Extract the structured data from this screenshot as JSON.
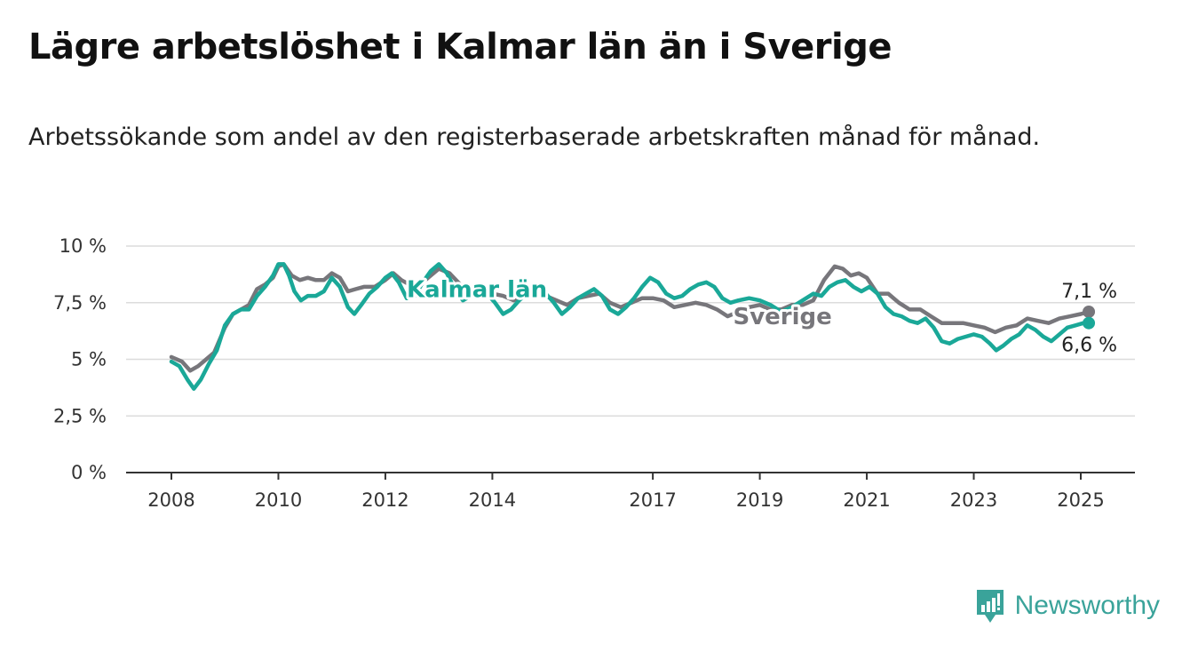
{
  "title": "Lägre arbetslöshet i Kalmar län än i Sverige",
  "subtitle": "Arbetssökande som andel av den registerbaserade arbetskraften månad för månad.",
  "brand": {
    "name": "Newsworthy",
    "icon": "newsworthy-logo-icon",
    "color": "#3aa39a"
  },
  "colors": {
    "kalmar": "#1aa898",
    "sverige": "#77767b",
    "grid": "#dcdcdc",
    "axis": "#333333"
  },
  "chart_data": {
    "type": "line",
    "title": "Lägre arbetslöshet i Kalmar län än i Sverige",
    "xlabel": "",
    "ylabel": "",
    "xlim": [
      2007.2,
      2026.0
    ],
    "ylim": [
      0,
      10
    ],
    "y_ticks": [
      0,
      2.5,
      5,
      7.5,
      10
    ],
    "y_tick_labels": [
      "0 %",
      "2,5 %",
      "5 %",
      "7,5 %",
      "10 %"
    ],
    "x_ticks": [
      2008,
      2010,
      2012,
      2014,
      2017,
      2019,
      2021,
      2023,
      2025
    ],
    "x_tick_labels": [
      "2008",
      "2010",
      "2012",
      "2014",
      "2017",
      "2019",
      "2021",
      "2023",
      "2025"
    ],
    "grid": true,
    "legend": "inline labels",
    "series": [
      {
        "name": "Sverige",
        "color": "#77767b",
        "end_label": "7,1 %",
        "points": [
          [
            2008.0,
            5.1
          ],
          [
            2008.2,
            4.9
          ],
          [
            2008.35,
            4.5
          ],
          [
            2008.5,
            4.7
          ],
          [
            2008.65,
            5.0
          ],
          [
            2008.8,
            5.3
          ],
          [
            2009.0,
            6.4
          ],
          [
            2009.15,
            7.0
          ],
          [
            2009.3,
            7.2
          ],
          [
            2009.45,
            7.4
          ],
          [
            2009.6,
            8.1
          ],
          [
            2009.75,
            8.3
          ],
          [
            2009.9,
            8.6
          ],
          [
            2010.0,
            9.1
          ],
          [
            2010.1,
            9.2
          ],
          [
            2010.25,
            8.7
          ],
          [
            2010.4,
            8.5
          ],
          [
            2010.55,
            8.6
          ],
          [
            2010.7,
            8.5
          ],
          [
            2010.85,
            8.5
          ],
          [
            2011.0,
            8.8
          ],
          [
            2011.15,
            8.6
          ],
          [
            2011.3,
            8.0
          ],
          [
            2011.45,
            8.1
          ],
          [
            2011.6,
            8.2
          ],
          [
            2011.8,
            8.2
          ],
          [
            2012.0,
            8.5
          ],
          [
            2012.15,
            8.8
          ],
          [
            2012.3,
            8.5
          ],
          [
            2012.45,
            8.3
          ],
          [
            2012.6,
            8.2
          ],
          [
            2012.8,
            8.6
          ],
          [
            2013.0,
            9.0
          ],
          [
            2013.2,
            8.8
          ],
          [
            2013.4,
            8.3
          ],
          [
            2013.6,
            8.1
          ],
          [
            2013.8,
            7.9
          ],
          [
            2014.0,
            7.9
          ],
          [
            2014.2,
            7.8
          ],
          [
            2014.4,
            7.6
          ],
          [
            2014.6,
            7.8
          ],
          [
            2014.8,
            7.9
          ],
          [
            2015.0,
            7.8
          ],
          [
            2015.2,
            7.6
          ],
          [
            2015.4,
            7.4
          ],
          [
            2015.6,
            7.7
          ],
          [
            2015.8,
            7.8
          ],
          [
            2016.0,
            7.9
          ],
          [
            2016.2,
            7.5
          ],
          [
            2016.4,
            7.3
          ],
          [
            2016.6,
            7.5
          ],
          [
            2016.8,
            7.7
          ],
          [
            2017.0,
            7.7
          ],
          [
            2017.2,
            7.6
          ],
          [
            2017.4,
            7.3
          ],
          [
            2017.6,
            7.4
          ],
          [
            2017.8,
            7.5
          ],
          [
            2018.0,
            7.4
          ],
          [
            2018.2,
            7.2
          ],
          [
            2018.4,
            6.9
          ],
          [
            2018.6,
            7.1
          ],
          [
            2018.8,
            7.3
          ],
          [
            2019.0,
            7.4
          ],
          [
            2019.2,
            7.2
          ],
          [
            2019.4,
            7.2
          ],
          [
            2019.6,
            7.4
          ],
          [
            2019.8,
            7.4
          ],
          [
            2020.0,
            7.6
          ],
          [
            2020.2,
            8.5
          ],
          [
            2020.4,
            9.1
          ],
          [
            2020.55,
            9.0
          ],
          [
            2020.7,
            8.7
          ],
          [
            2020.85,
            8.8
          ],
          [
            2021.0,
            8.6
          ],
          [
            2021.2,
            7.9
          ],
          [
            2021.4,
            7.9
          ],
          [
            2021.6,
            7.5
          ],
          [
            2021.8,
            7.2
          ],
          [
            2022.0,
            7.2
          ],
          [
            2022.2,
            6.9
          ],
          [
            2022.4,
            6.6
          ],
          [
            2022.6,
            6.6
          ],
          [
            2022.8,
            6.6
          ],
          [
            2023.0,
            6.5
          ],
          [
            2023.2,
            6.4
          ],
          [
            2023.4,
            6.2
          ],
          [
            2023.6,
            6.4
          ],
          [
            2023.8,
            6.5
          ],
          [
            2024.0,
            6.8
          ],
          [
            2024.2,
            6.7
          ],
          [
            2024.4,
            6.6
          ],
          [
            2024.6,
            6.8
          ],
          [
            2024.8,
            6.9
          ],
          [
            2025.0,
            7.0
          ],
          [
            2025.15,
            7.1
          ]
        ]
      },
      {
        "name": "Kalmar län",
        "color": "#1aa898",
        "end_label": "6,6 %",
        "points": [
          [
            2008.0,
            4.9
          ],
          [
            2008.15,
            4.7
          ],
          [
            2008.3,
            4.1
          ],
          [
            2008.42,
            3.7
          ],
          [
            2008.55,
            4.1
          ],
          [
            2008.7,
            4.8
          ],
          [
            2008.85,
            5.4
          ],
          [
            2009.0,
            6.5
          ],
          [
            2009.15,
            7.0
          ],
          [
            2009.3,
            7.2
          ],
          [
            2009.45,
            7.2
          ],
          [
            2009.6,
            7.8
          ],
          [
            2009.75,
            8.2
          ],
          [
            2009.9,
            8.7
          ],
          [
            2010.0,
            9.2
          ],
          [
            2010.1,
            9.2
          ],
          [
            2010.2,
            8.7
          ],
          [
            2010.3,
            8.0
          ],
          [
            2010.42,
            7.6
          ],
          [
            2010.55,
            7.8
          ],
          [
            2010.7,
            7.8
          ],
          [
            2010.85,
            8.0
          ],
          [
            2011.0,
            8.6
          ],
          [
            2011.15,
            8.2
          ],
          [
            2011.3,
            7.3
          ],
          [
            2011.42,
            7.0
          ],
          [
            2011.55,
            7.4
          ],
          [
            2011.7,
            7.9
          ],
          [
            2011.85,
            8.2
          ],
          [
            2012.0,
            8.6
          ],
          [
            2012.12,
            8.8
          ],
          [
            2012.25,
            8.4
          ],
          [
            2012.4,
            7.7
          ],
          [
            2012.55,
            7.8
          ],
          [
            2012.7,
            8.4
          ],
          [
            2012.85,
            8.9
          ],
          [
            2013.0,
            9.2
          ],
          [
            2013.15,
            8.8
          ],
          [
            2013.3,
            8.1
          ],
          [
            2013.45,
            7.6
          ],
          [
            2013.6,
            7.8
          ],
          [
            2013.75,
            8.1
          ],
          [
            2013.9,
            7.9
          ],
          [
            2014.05,
            7.5
          ],
          [
            2014.2,
            7.0
          ],
          [
            2014.35,
            7.2
          ],
          [
            2014.5,
            7.6
          ],
          [
            2014.7,
            8.0
          ],
          [
            2014.85,
            8.1
          ],
          [
            2015.0,
            7.9
          ],
          [
            2015.15,
            7.5
          ],
          [
            2015.3,
            7.0
          ],
          [
            2015.45,
            7.3
          ],
          [
            2015.6,
            7.7
          ],
          [
            2015.75,
            7.9
          ],
          [
            2015.9,
            8.1
          ],
          [
            2016.05,
            7.8
          ],
          [
            2016.2,
            7.2
          ],
          [
            2016.35,
            7.0
          ],
          [
            2016.5,
            7.3
          ],
          [
            2016.65,
            7.7
          ],
          [
            2016.8,
            8.2
          ],
          [
            2016.95,
            8.6
          ],
          [
            2017.1,
            8.4
          ],
          [
            2017.25,
            7.9
          ],
          [
            2017.4,
            7.7
          ],
          [
            2017.55,
            7.8
          ],
          [
            2017.7,
            8.1
          ],
          [
            2017.85,
            8.3
          ],
          [
            2018.0,
            8.4
          ],
          [
            2018.15,
            8.2
          ],
          [
            2018.3,
            7.7
          ],
          [
            2018.45,
            7.5
          ],
          [
            2018.6,
            7.6
          ],
          [
            2018.8,
            7.7
          ],
          [
            2019.0,
            7.6
          ],
          [
            2019.2,
            7.4
          ],
          [
            2019.4,
            7.1
          ],
          [
            2019.6,
            7.3
          ],
          [
            2019.8,
            7.6
          ],
          [
            2020.0,
            7.9
          ],
          [
            2020.15,
            7.8
          ],
          [
            2020.3,
            8.2
          ],
          [
            2020.45,
            8.4
          ],
          [
            2020.6,
            8.5
          ],
          [
            2020.75,
            8.2
          ],
          [
            2020.9,
            8.0
          ],
          [
            2021.05,
            8.2
          ],
          [
            2021.2,
            7.9
          ],
          [
            2021.35,
            7.3
          ],
          [
            2021.5,
            7.0
          ],
          [
            2021.65,
            6.9
          ],
          [
            2021.8,
            6.7
          ],
          [
            2021.95,
            6.6
          ],
          [
            2022.1,
            6.8
          ],
          [
            2022.25,
            6.4
          ],
          [
            2022.4,
            5.8
          ],
          [
            2022.55,
            5.7
          ],
          [
            2022.7,
            5.9
          ],
          [
            2022.85,
            6.0
          ],
          [
            2023.0,
            6.1
          ],
          [
            2023.15,
            6.0
          ],
          [
            2023.3,
            5.7
          ],
          [
            2023.42,
            5.4
          ],
          [
            2023.55,
            5.6
          ],
          [
            2023.7,
            5.9
          ],
          [
            2023.85,
            6.1
          ],
          [
            2024.0,
            6.5
          ],
          [
            2024.15,
            6.3
          ],
          [
            2024.3,
            6.0
          ],
          [
            2024.45,
            5.8
          ],
          [
            2024.6,
            6.1
          ],
          [
            2024.75,
            6.4
          ],
          [
            2024.9,
            6.5
          ],
          [
            2025.05,
            6.6
          ],
          [
            2025.15,
            6.6
          ]
        ]
      }
    ]
  }
}
